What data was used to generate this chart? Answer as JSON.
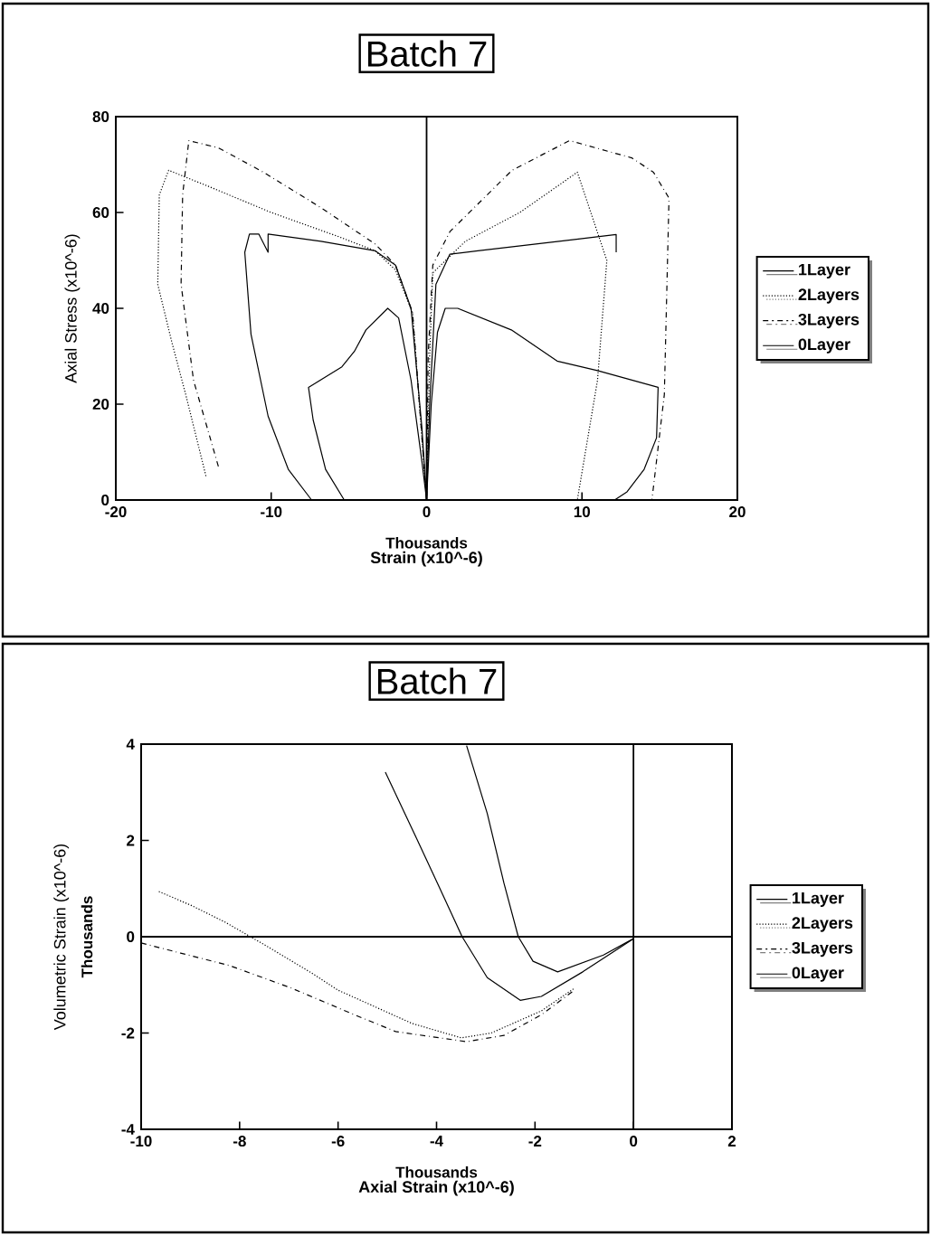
{
  "chart_data": [
    {
      "type": "line",
      "title": "Batch 7",
      "xlabel": "Strain (x10^-6)",
      "ylabel": "Axial Stress (x10^-6)",
      "annotations": [
        "Thousands"
      ],
      "xlim": [
        -20,
        20
      ],
      "ylim": [
        0,
        80
      ],
      "xticks": [
        -20,
        -10,
        0,
        10,
        20
      ],
      "yticks": [
        0,
        20,
        40,
        60,
        80
      ],
      "legend": "right",
      "marker": "none",
      "ref_lines": [
        {
          "axis": "x",
          "value": 0
        }
      ],
      "series": [
        {
          "name": "1Layer",
          "color": "#000000",
          "line_style": "solid",
          "x": [
            -7.4,
            -8.9,
            -10.2,
            -11.3,
            -11.7,
            -11.4,
            -10.8,
            -10.2,
            -10.2,
            -6.8,
            -3.3,
            -2,
            -1,
            -0.3,
            0,
            0.2,
            0.6,
            1.5,
            3.3,
            9.4,
            12.2,
            12.2
          ],
          "values": [
            0,
            6.4,
            17.5,
            34.6,
            51.7,
            55.5,
            55.5,
            51.7,
            55.5,
            54,
            52,
            49,
            40,
            15,
            0,
            20,
            45,
            51.3,
            52,
            54.3,
            55.4,
            51.7
          ]
        },
        {
          "name": "2Layers",
          "color": "#000000",
          "line_style": "dotted",
          "x": [
            -14.2,
            -15.5,
            -16.4,
            -17.3,
            -17.2,
            -16.6,
            -14,
            -10,
            -5.7,
            -3.3,
            -2,
            -0.9,
            -0.3,
            0,
            0.2,
            0.4,
            2.5,
            6,
            9.7,
            11.6,
            11,
            9.7
          ],
          "values": [
            5,
            22,
            33,
            45,
            63.7,
            68.8,
            65.4,
            60,
            55,
            52,
            48,
            39,
            13,
            0,
            30,
            47.4,
            54,
            60,
            68.4,
            50,
            25,
            0
          ]
        },
        {
          "name": "3Layers",
          "color": "#000000",
          "line_style": "dashed",
          "x": [
            -13.4,
            -15,
            -15.8,
            -15.7,
            -15.3,
            -13.4,
            -10.5,
            -6.8,
            -3.3,
            -2,
            -0.9,
            -0.3,
            0,
            0.1,
            0.4,
            1.5,
            5.5,
            9.2,
            13.2,
            14.6,
            15.6,
            15.3,
            14.5
          ],
          "values": [
            7,
            25,
            45,
            63.7,
            75,
            73.5,
            68.4,
            61,
            53.4,
            49,
            39,
            13,
            0,
            30,
            49,
            56,
            68.8,
            75,
            71.4,
            68.4,
            63,
            22,
            0
          ]
        },
        {
          "name": "0Layer",
          "color": "#000000",
          "line_style": "solid",
          "x": [
            -5.3,
            -6.5,
            -7.3,
            -7.6,
            -5.45,
            -4.65,
            -3.9,
            -2.5,
            -1.8,
            -1,
            -0.3,
            0,
            0.3,
            0.7,
            1.2,
            2,
            5.45,
            8.4,
            11,
            14.9,
            14.8,
            14,
            12.9,
            12.1
          ],
          "values": [
            0,
            6.4,
            16.7,
            23.5,
            27.8,
            31,
            35.5,
            40,
            38,
            25,
            8,
            0,
            20,
            35,
            40,
            40,
            35.5,
            29,
            27,
            23.5,
            13,
            6.4,
            1.7,
            0
          ]
        }
      ]
    },
    {
      "type": "line",
      "title": "Batch 7",
      "xlabel": "Axial Strain (x10^-6)",
      "ylabel": "Volumetric Strain (x10^-6)",
      "annotations": [
        "Thousands",
        "Thousands"
      ],
      "xlim": [
        -10,
        2
      ],
      "ylim": [
        -4,
        4
      ],
      "xticks": [
        -10,
        -8,
        -6,
        -4,
        -2,
        0,
        2
      ],
      "yticks": [
        -4,
        -2,
        0,
        2,
        4
      ],
      "legend": "right",
      "marker": "none",
      "ref_lines": [
        {
          "axis": "x",
          "value": 0
        },
        {
          "axis": "y",
          "value": 0
        }
      ],
      "series": [
        {
          "name": "1Layer",
          "color": "#000000",
          "line_style": "solid",
          "x": [
            -5.04,
            -4.41,
            -3.98,
            -3.48,
            -2.97,
            -2.3,
            -1.87,
            -1.03,
            0
          ],
          "values": [
            3.42,
            2.05,
            1.11,
            0,
            -0.85,
            -1.32,
            -1.24,
            -0.73,
            -0.04
          ]
        },
        {
          "name": "2Layers",
          "color": "#000000",
          "line_style": "dotted",
          "x": [
            -9.64,
            -8.96,
            -8.29,
            -7.49,
            -6.51,
            -6,
            -4.5,
            -3.5,
            -2.89,
            -1.87,
            -1.2
          ],
          "values": [
            0.94,
            0.64,
            0.3,
            -0.17,
            -0.77,
            -1.11,
            -1.8,
            -2.1,
            -2,
            -1.54,
            -1.07
          ]
        },
        {
          "name": "3Layers",
          "color": "#000000",
          "line_style": "dashed",
          "x": [
            -10,
            -9.2,
            -8.2,
            -6.94,
            -5.67,
            -4.83,
            -3.39,
            -2.63,
            -1.87,
            -1.2
          ],
          "values": [
            -0.13,
            -0.34,
            -0.6,
            -1.07,
            -1.62,
            -1.97,
            -2.18,
            -2.05,
            -1.62,
            -1.11
          ]
        },
        {
          "name": "0Layer",
          "color": "#000000",
          "line_style": "solid",
          "x": [
            -3.39,
            -2.97,
            -2.63,
            -2.34,
            -2.04,
            -1.54,
            -0.61,
            0
          ],
          "values": [
            3.97,
            2.56,
            1.11,
            0,
            -0.51,
            -0.73,
            -0.38,
            -0.04
          ]
        }
      ]
    }
  ]
}
